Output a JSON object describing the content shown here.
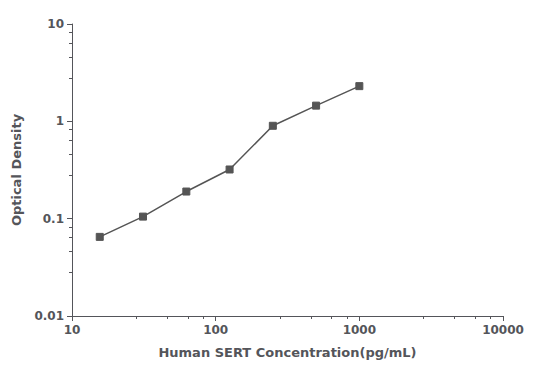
{
  "chart_data": {
    "type": "line",
    "x": [
      15.6,
      31.2,
      62.5,
      125,
      250,
      500,
      1000
    ],
    "values": [
      0.065,
      0.105,
      0.19,
      0.32,
      0.9,
      1.45,
      2.3
    ],
    "xlabel": "Human SERT Concentration(pg/mL)",
    "ylabel": "Optical Density",
    "xlim": [
      10,
      10000
    ],
    "ylim": [
      0.01,
      10
    ],
    "xticks": [
      10,
      100,
      1000,
      10000
    ],
    "yticks": [
      0.01,
      0.1,
      1,
      10
    ],
    "log": true,
    "grid": false,
    "color": "#555555",
    "marker": "square"
  }
}
